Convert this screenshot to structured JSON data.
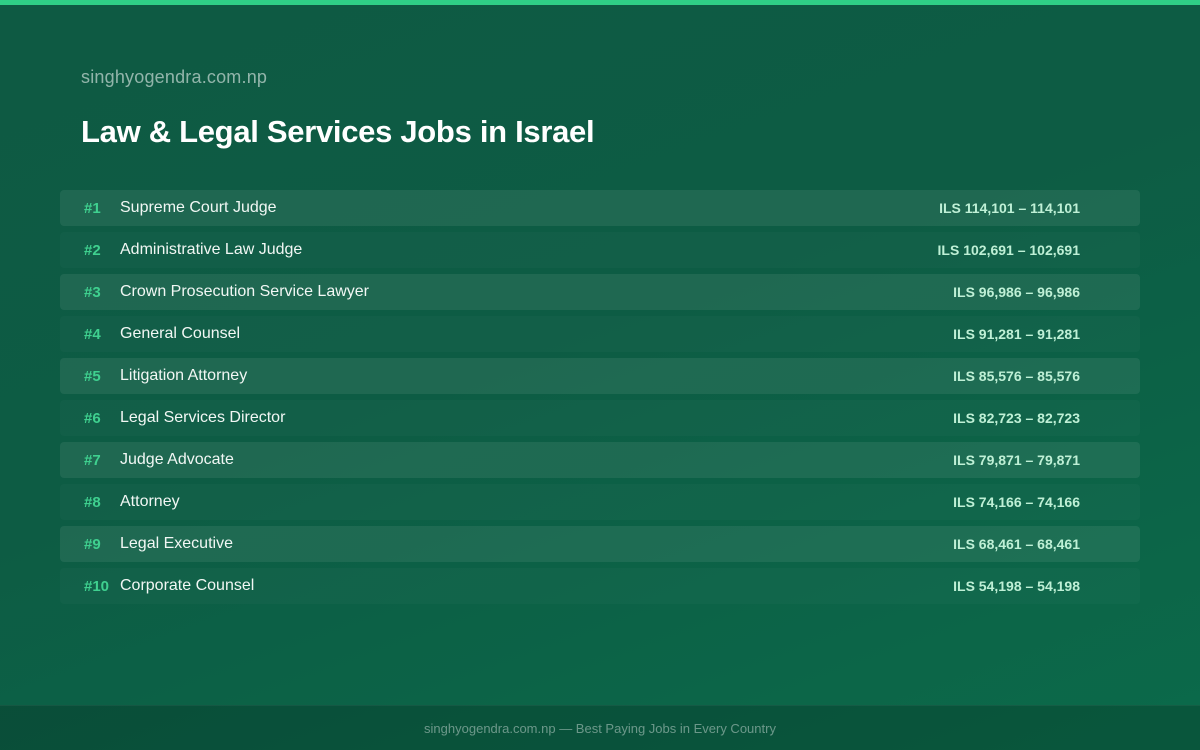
{
  "site_name": "singhyogendra.com.np",
  "page_title": "Law & Legal Services Jobs in Israel",
  "colors": {
    "accent": "#2fcf86",
    "rank": "#3fd08f",
    "salary": "#bff0d6"
  },
  "jobs": [
    {
      "rank": "#1",
      "title": "Supreme Court Judge",
      "salary": "ILS 114,101 – 114,101"
    },
    {
      "rank": "#2",
      "title": "Administrative Law Judge",
      "salary": "ILS 102,691 – 102,691"
    },
    {
      "rank": "#3",
      "title": "Crown Prosecution Service Lawyer",
      "salary": "ILS 96,986 – 96,986"
    },
    {
      "rank": "#4",
      "title": "General Counsel",
      "salary": "ILS 91,281 – 91,281"
    },
    {
      "rank": "#5",
      "title": "Litigation Attorney",
      "salary": "ILS 85,576 – 85,576"
    },
    {
      "rank": "#6",
      "title": "Legal Services Director",
      "salary": "ILS 82,723 – 82,723"
    },
    {
      "rank": "#7",
      "title": "Judge Advocate",
      "salary": "ILS 79,871 – 79,871"
    },
    {
      "rank": "#8",
      "title": "Attorney",
      "salary": "ILS 74,166 – 74,166"
    },
    {
      "rank": "#9",
      "title": "Legal Executive",
      "salary": "ILS 68,461 – 68,461"
    },
    {
      "rank": "#10",
      "title": "Corporate Counsel",
      "salary": "ILS 54,198 – 54,198"
    }
  ],
  "footer": {
    "text": "singhyogendra.com.np — Best Paying Jobs in Every Country"
  }
}
